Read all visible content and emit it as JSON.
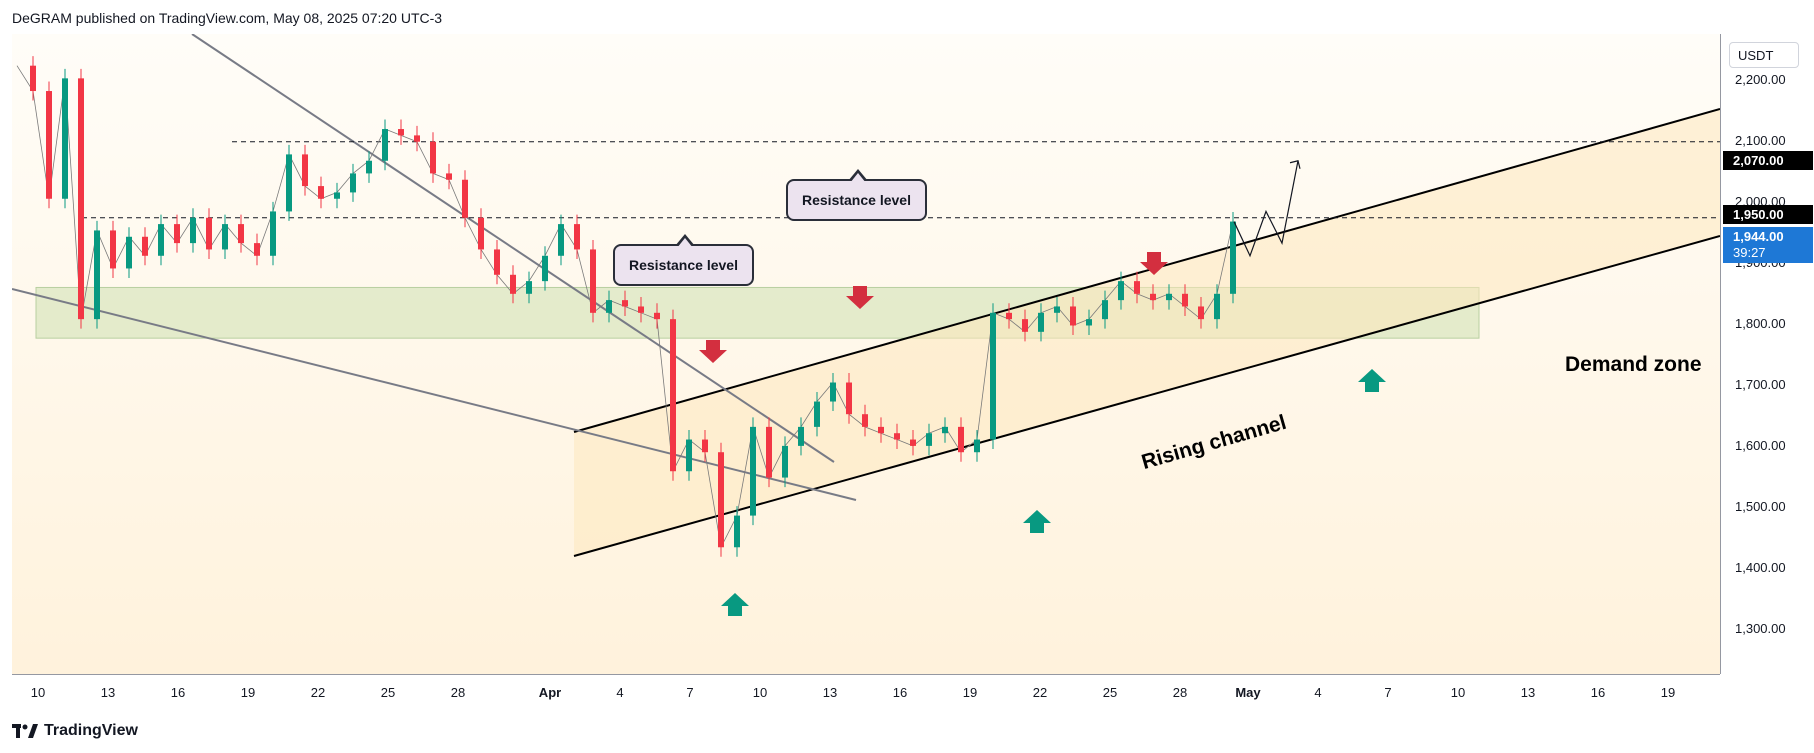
{
  "header": {
    "publisher_line": "DeGRAM published on TradingView.com, May 08, 2025 07:20 UTC-3"
  },
  "footer": {
    "brand": "TradingView"
  },
  "price_axis": {
    "currency": "USDT",
    "tag_2070": "2,070.00",
    "tag_1950": "1,950.00",
    "current_price": "1,944.00",
    "countdown": "39:27"
  },
  "annotations": {
    "resistance_1": "Resistance level",
    "resistance_2": "Resistance level",
    "demand_zone": "Demand zone",
    "rising_channel": "Rising channel"
  },
  "colors": {
    "up_candle": "#089981",
    "down_candle": "#f23645",
    "demand_zone_fill": "#dfe9c6",
    "channel_fill": "#fde7bd",
    "arrow_down": "#d32f3f",
    "arrow_up": "#089981",
    "current_tag": "#1e78d6"
  },
  "chart_data": {
    "type": "line",
    "title": "",
    "y_ticks": [
      "2,200.00",
      "2,100.00",
      "2,000.00",
      "1,900.00",
      "1,800.00",
      "1,700.00",
      "1,600.00",
      "1,500.00",
      "1,400.00",
      "1,300.00"
    ],
    "x_ticks": [
      "10",
      "13",
      "16",
      "19",
      "22",
      "25",
      "28",
      "Apr",
      "4",
      "7",
      "10",
      "13",
      "16",
      "19",
      "22",
      "25",
      "28",
      "May",
      "4",
      "7",
      "10",
      "13",
      "16",
      "19"
    ],
    "ylim": [
      1230,
      2240
    ],
    "series": [
      {
        "values": [
          [
            0,
            2190
          ],
          [
            1,
            2150
          ],
          [
            2,
            1980
          ],
          [
            3,
            2170
          ],
          [
            4,
            1790
          ],
          [
            5,
            1930
          ],
          [
            6,
            1870
          ],
          [
            7,
            1920
          ],
          [
            8,
            1890
          ],
          [
            9,
            1940
          ],
          [
            10,
            1910
          ],
          [
            11,
            1950
          ],
          [
            12,
            1900
          ],
          [
            13,
            1940
          ],
          [
            14,
            1910
          ],
          [
            15,
            1890
          ],
          [
            16,
            1960
          ],
          [
            17,
            2050
          ],
          [
            18,
            2000
          ],
          [
            19,
            1980
          ],
          [
            20,
            1990
          ],
          [
            21,
            2020
          ],
          [
            22,
            2040
          ],
          [
            23,
            2090
          ],
          [
            24,
            2080
          ],
          [
            25,
            2070
          ],
          [
            26,
            2020
          ],
          [
            27,
            2010
          ],
          [
            28,
            1950
          ],
          [
            29,
            1900
          ],
          [
            30,
            1860
          ],
          [
            31,
            1830
          ],
          [
            32,
            1850
          ],
          [
            33,
            1890
          ],
          [
            34,
            1940
          ],
          [
            35,
            1900
          ],
          [
            36,
            1800
          ],
          [
            37,
            1820
          ],
          [
            38,
            1810
          ],
          [
            39,
            1800
          ],
          [
            40,
            1790
          ],
          [
            41,
            1550
          ],
          [
            42,
            1600
          ],
          [
            43,
            1580
          ],
          [
            44,
            1430
          ],
          [
            45,
            1480
          ],
          [
            46,
            1620
          ],
          [
            47,
            1540
          ],
          [
            48,
            1590
          ],
          [
            49,
            1620
          ],
          [
            50,
            1660
          ],
          [
            51,
            1690
          ],
          [
            52,
            1640
          ],
          [
            53,
            1620
          ],
          [
            54,
            1610
          ],
          [
            55,
            1600
          ],
          [
            56,
            1590
          ],
          [
            57,
            1610
          ],
          [
            58,
            1620
          ],
          [
            59,
            1580
          ],
          [
            60,
            1600
          ],
          [
            61,
            1800
          ],
          [
            62,
            1790
          ],
          [
            63,
            1770
          ],
          [
            64,
            1800
          ],
          [
            65,
            1810
          ],
          [
            66,
            1780
          ],
          [
            67,
            1790
          ],
          [
            68,
            1820
          ],
          [
            69,
            1850
          ],
          [
            70,
            1830
          ],
          [
            71,
            1820
          ],
          [
            72,
            1830
          ],
          [
            73,
            1810
          ],
          [
            74,
            1790
          ],
          [
            75,
            1830
          ],
          [
            76,
            1944
          ]
        ]
      }
    ],
    "levels": [
      2070,
      1950
    ],
    "demand_zone": [
      1760,
      1840
    ],
    "projection": [
      [
        76,
        1944
      ],
      [
        77,
        1890
      ],
      [
        78,
        1960
      ],
      [
        79,
        1910
      ],
      [
        80,
        2040
      ]
    ]
  }
}
